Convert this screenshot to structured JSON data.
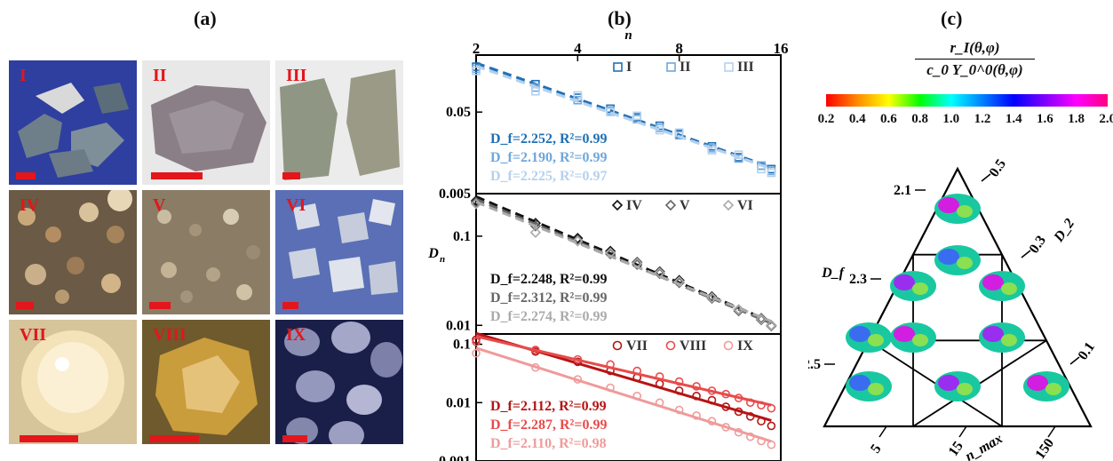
{
  "panels": {
    "a_label": "(a)",
    "b_label": "(b)",
    "c_label": "(c)"
  },
  "images": [
    {
      "id": "I",
      "label": "I",
      "bg": "#2f3fa0"
    },
    {
      "id": "II",
      "label": "II",
      "bg": "#dcdcdc"
    },
    {
      "id": "III",
      "label": "III",
      "bg": "#e7e7e7"
    },
    {
      "id": "IV",
      "label": "IV",
      "bg": "#6b5a45"
    },
    {
      "id": "V",
      "label": "V",
      "bg": "#8b7c66"
    },
    {
      "id": "VI",
      "label": "VI",
      "bg": "#5a6fb6"
    },
    {
      "id": "VII",
      "label": "VII",
      "bg": "#c9b58c"
    },
    {
      "id": "VIII",
      "label": "VIII",
      "bg": "#6e5a2c"
    },
    {
      "id": "IX",
      "label": "IX",
      "bg": "#1a1f4a"
    }
  ],
  "chart_data": {
    "type": "scatter",
    "xlabel": "n",
    "ylabel": "D_n",
    "x_ticks": [
      "2",
      "4",
      "8",
      "16"
    ],
    "x_scale": "log",
    "xlim": [
      2,
      16
    ],
    "subplots": [
      {
        "name": "top",
        "yscale": "log",
        "y_ticks": [
          "0.05",
          "0.005"
        ],
        "ylim": [
          0.005,
          0.25
        ],
        "series": [
          {
            "name": "I",
            "color": "#1f6fb4",
            "marker": "square",
            "fit": "D_f=2.252, R²=0.99",
            "x": [
              2,
              3,
              4,
              5,
              6,
              7,
              8,
              10,
              12,
              14,
              15
            ],
            "y": [
              0.18,
              0.11,
              0.075,
              0.055,
              0.043,
              0.034,
              0.027,
              0.019,
              0.014,
              0.011,
              0.01
            ]
          },
          {
            "name": "II",
            "color": "#6fa7dc",
            "marker": "square",
            "fit": "D_f=2.190, R²=0.99",
            "x": [
              2,
              3,
              4,
              5,
              6,
              7,
              8,
              10,
              12,
              14,
              15
            ],
            "y": [
              0.17,
              0.1,
              0.07,
              0.052,
              0.041,
              0.032,
              0.026,
              0.018,
              0.0135,
              0.011,
              0.0095
            ]
          },
          {
            "name": "III",
            "color": "#b5d1ee",
            "marker": "square",
            "fit": "D_f=2.225, R²=0.97",
            "x": [
              2,
              3,
              4,
              5,
              6,
              7,
              8,
              10,
              12,
              14,
              15
            ],
            "y": [
              0.16,
              0.09,
              0.08,
              0.05,
              0.045,
              0.03,
              0.028,
              0.017,
              0.015,
              0.01,
              0.009
            ]
          }
        ]
      },
      {
        "name": "middle",
        "yscale": "log",
        "y_ticks": [
          "0.1",
          "0.01"
        ],
        "ylim": [
          0.008,
          0.3
        ],
        "series": [
          {
            "name": "IV",
            "color": "#111111",
            "marker": "diamond",
            "fit": "D_f=2.248, R²=0.99",
            "x": [
              2,
              3,
              4,
              5,
              6,
              7,
              8,
              10,
              12,
              14,
              15
            ],
            "y": [
              0.25,
              0.14,
              0.095,
              0.068,
              0.051,
              0.04,
              0.032,
              0.021,
              0.015,
              0.012,
              0.01
            ]
          },
          {
            "name": "V",
            "color": "#666666",
            "marker": "diamond",
            "fit": "D_f=2.312, R²=0.99",
            "x": [
              2,
              3,
              4,
              5,
              6,
              7,
              8,
              10,
              12,
              14,
              15
            ],
            "y": [
              0.24,
              0.13,
              0.09,
              0.063,
              0.048,
              0.038,
              0.03,
              0.02,
              0.0145,
              0.0115,
              0.0098
            ]
          },
          {
            "name": "VI",
            "color": "#aaaaaa",
            "marker": "diamond",
            "fit": "D_f=2.274, R²=0.99",
            "x": [
              2,
              3,
              4,
              5,
              6,
              7,
              8,
              10,
              12,
              14,
              15
            ],
            "y": [
              0.23,
              0.11,
              0.088,
              0.065,
              0.05,
              0.039,
              0.031,
              0.0205,
              0.015,
              0.0118,
              0.01
            ]
          }
        ]
      },
      {
        "name": "bottom",
        "yscale": "log",
        "y_ticks": [
          "0.1",
          "0.01",
          "0.001"
        ],
        "ylim": [
          0.001,
          0.15
        ],
        "series": [
          {
            "name": "VII",
            "color": "#b51414",
            "marker": "circle",
            "fit": "D_f=2.112, R²=0.99",
            "x": [
              2,
              3,
              4,
              5,
              6,
              7,
              8,
              9,
              10,
              11,
              12,
              13,
              14,
              15
            ],
            "y": [
              0.12,
              0.075,
              0.05,
              0.035,
              0.027,
              0.021,
              0.016,
              0.013,
              0.011,
              0.0085,
              0.007,
              0.0058,
              0.0048,
              0.004
            ]
          },
          {
            "name": "VIII",
            "color": "#e84b4b",
            "marker": "circle",
            "fit": "D_f=2.287, R²=0.99",
            "x": [
              2,
              3,
              4,
              5,
              6,
              7,
              8,
              9,
              10,
              11,
              12,
              13,
              14,
              15
            ],
            "y": [
              0.11,
              0.08,
              0.055,
              0.045,
              0.035,
              0.028,
              0.023,
              0.019,
              0.016,
              0.014,
              0.012,
              0.01,
              0.009,
              0.008
            ]
          },
          {
            "name": "IX",
            "color": "#f09a9a",
            "marker": "circle",
            "fit": "D_f=2.110, R²=0.98",
            "x": [
              2,
              3,
              4,
              5,
              6,
              7,
              8,
              9,
              10,
              11,
              12,
              13,
              14,
              15
            ],
            "y": [
              0.07,
              0.04,
              0.025,
              0.018,
              0.013,
              0.01,
              0.0075,
              0.006,
              0.0048,
              0.0038,
              0.0031,
              0.0026,
              0.0022,
              0.0019
            ]
          }
        ]
      }
    ]
  },
  "panel_c": {
    "formula_num": "r_I(θ,φ)",
    "formula_den": "c_0 Y_0^0(θ,φ)",
    "colorbar_ticks": [
      "0.2",
      "0.4",
      "0.6",
      "0.8",
      "1.0",
      "1.2",
      "1.4",
      "1.6",
      "1.8",
      "2.0"
    ],
    "left_axis_label": "D_f",
    "left_ticks": [
      "2.1",
      "2.3",
      "2.5"
    ],
    "right_axis_label": "D_2",
    "right_ticks": [
      "0.5",
      "0.3",
      "0.1"
    ],
    "bottom_axis_label": "n_max",
    "bottom_ticks": [
      "5",
      "15",
      "150"
    ]
  }
}
